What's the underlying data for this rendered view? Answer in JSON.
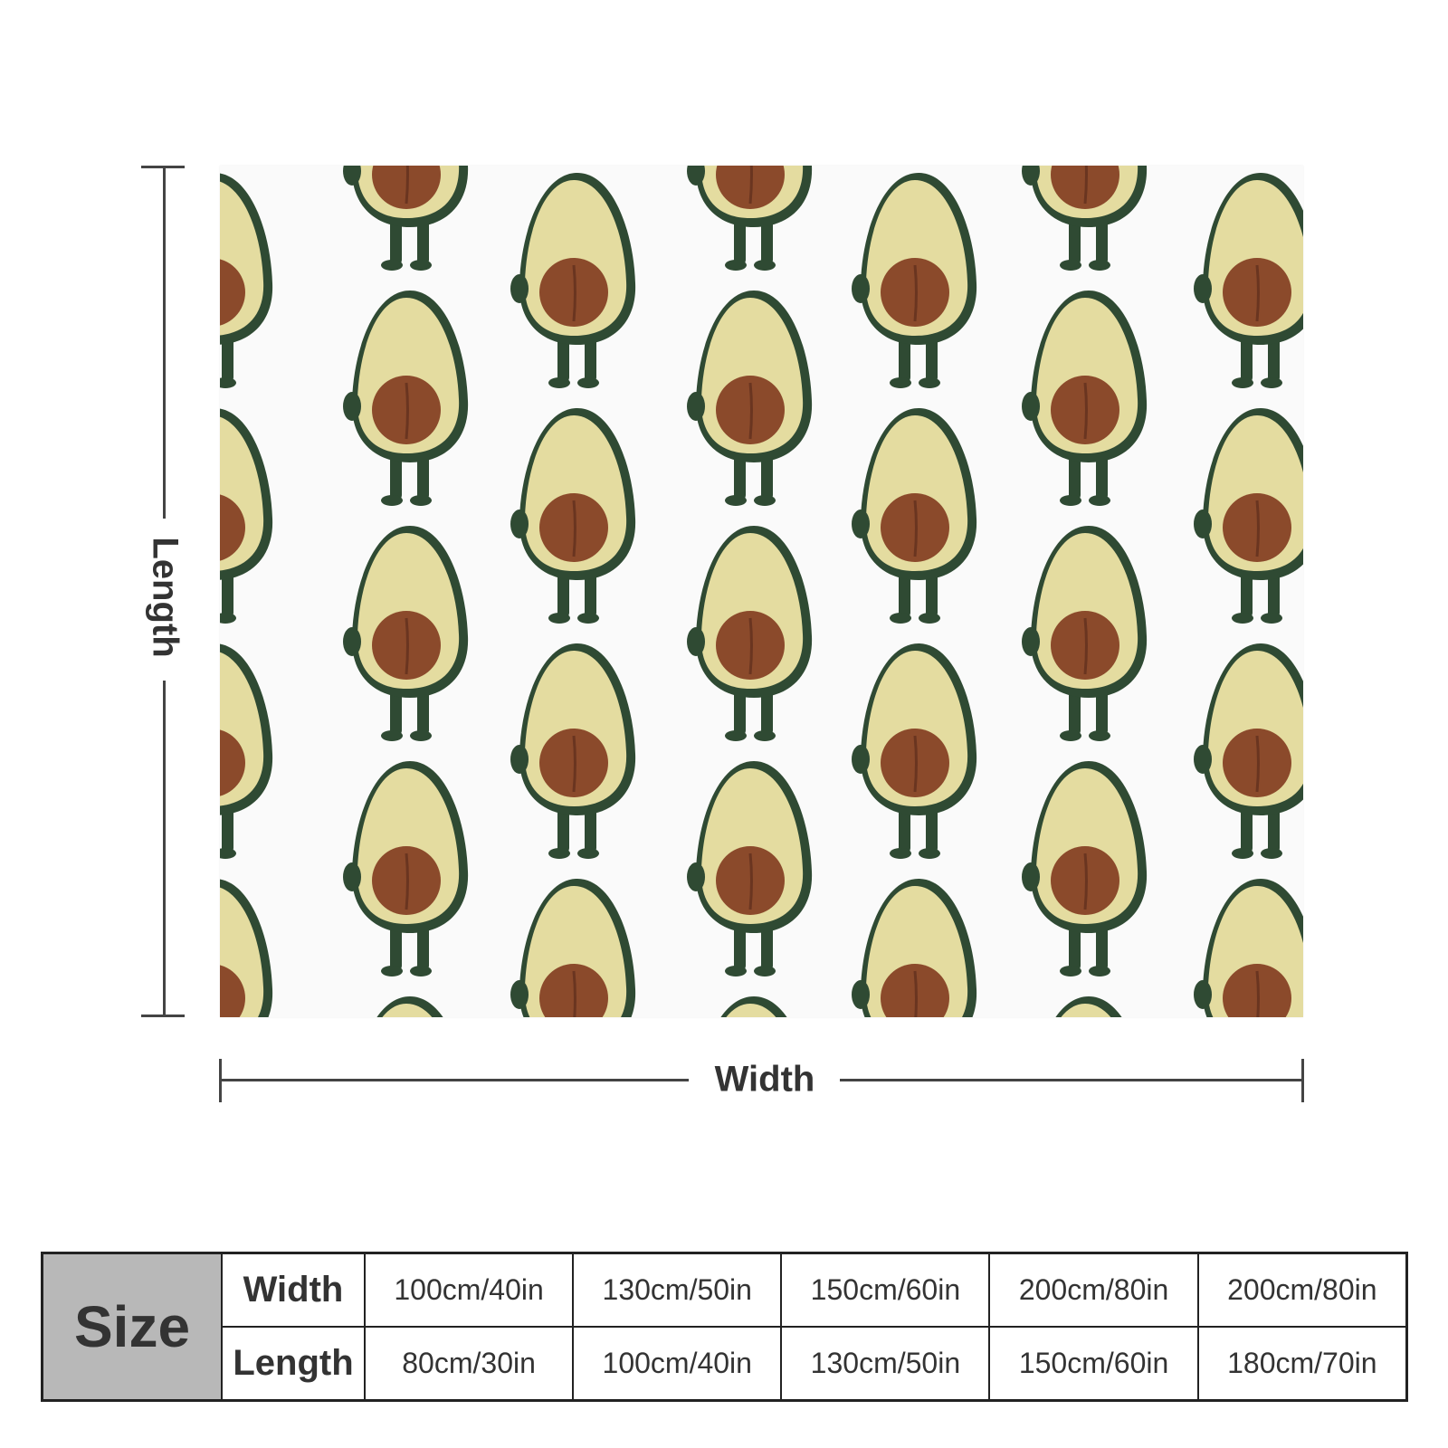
{
  "diagram": {
    "length_label": "Length",
    "width_label": "Width"
  },
  "size_table": {
    "header": "Size",
    "width_label": "Width",
    "length_label": "Length",
    "widths": [
      "100cm/40in",
      "130cm/50in",
      "150cm/60in",
      "200cm/80in",
      "200cm/80in"
    ],
    "lengths": [
      "80cm/30in",
      "100cm/40in",
      "130cm/50in",
      "150cm/60in",
      "180cm/70in"
    ]
  },
  "colors": {
    "flesh": "#e4dca0",
    "skin": "#2f4a33",
    "pit": "#8b4a2b",
    "table_header_bg": "#b8b8b8"
  },
  "icons": [
    "avocado-icon"
  ]
}
